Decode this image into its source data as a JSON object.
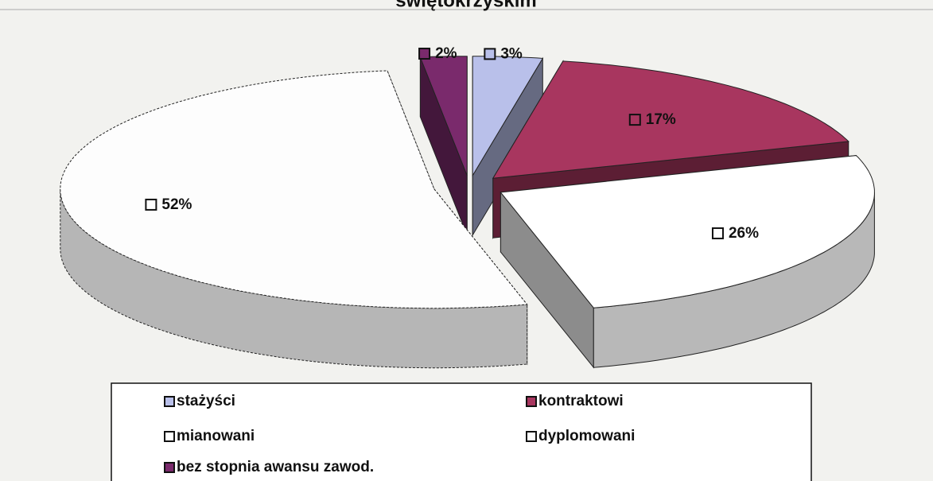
{
  "chart_data": {
    "type": "pie",
    "title": "świętokrzyskim",
    "categories": [
      "stażyści",
      "kontraktowi",
      "mianowani",
      "dyplomowani",
      "bez stopnia awansu zawod."
    ],
    "values": [
      3,
      17,
      26,
      52,
      2
    ],
    "value_labels": [
      "3%",
      "17%",
      "26%",
      "52%",
      "2%"
    ],
    "colors": [
      "#b9c0ea",
      "#a8365f",
      "#ffffff",
      "#fdfdfd",
      "#7a2a6c"
    ]
  }
}
